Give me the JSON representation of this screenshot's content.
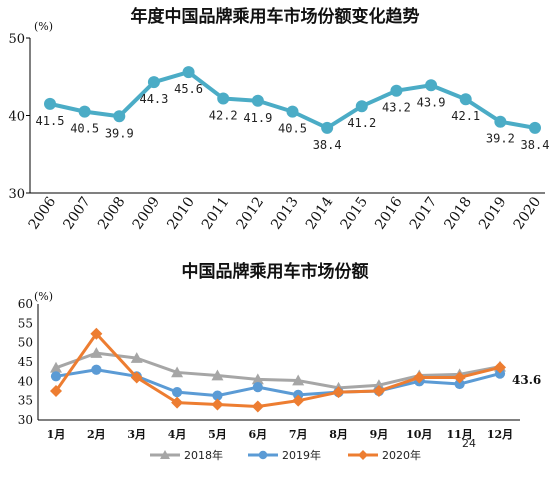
{
  "chart_data": [
    {
      "type": "line",
      "title": "年度中国品牌乘用车市场份额变化趋势",
      "unit_label": "(%)",
      "ylim": [
        30,
        50
      ],
      "yticks": [
        "30",
        "40",
        "50"
      ],
      "grid": false,
      "categories": [
        "2006",
        "2007",
        "2008",
        "2009",
        "2010",
        "2011",
        "2012",
        "2013",
        "2014",
        "2015",
        "2016",
        "2017",
        "2018",
        "2019",
        "2020"
      ],
      "series": [
        {
          "color": "#4bacc6",
          "values": [
            41.5,
            40.5,
            39.9,
            44.3,
            45.6,
            42.2,
            41.9,
            40.5,
            38.4,
            41.2,
            43.2,
            43.9,
            42.1,
            39.2,
            38.4
          ],
          "labels": [
            "41.5",
            "40.5",
            "39.9",
            "44.3",
            "45.6",
            "42.2",
            "41.9",
            "40.5",
            "38.4",
            "41.2",
            "43.2",
            "43.9",
            "42.1",
            "39.2",
            "38.4"
          ]
        }
      ]
    },
    {
      "type": "line",
      "title": "中国品牌乘用车市场份额",
      "unit_label": "(%)",
      "ylim": [
        30,
        60
      ],
      "yticks": [
        "30",
        "35",
        "40",
        "45",
        "50",
        "55",
        "60"
      ],
      "grid": false,
      "legend_position": "bottom",
      "categories": [
        "1月",
        "2月",
        "3月",
        "4月",
        "5月",
        "6月",
        "7月",
        "8月",
        "9月",
        "10月",
        "11月",
        "12月"
      ],
      "series": [
        {
          "name": "2018年",
          "color": "#a6a6a6",
          "marker": "triangle",
          "values": [
            43.5,
            47.3,
            46.0,
            42.3,
            41.5,
            40.5,
            40.2,
            38.3,
            39.0,
            41.5,
            41.8,
            43.8
          ]
        },
        {
          "name": "2019年",
          "color": "#5b9bd5",
          "marker": "circle",
          "values": [
            41.3,
            43.0,
            41.3,
            37.2,
            36.3,
            38.5,
            36.5,
            37.2,
            37.5,
            40.0,
            39.3,
            42.0
          ]
        },
        {
          "name": "2020年",
          "color": "#ed7d31",
          "marker": "diamond",
          "values": [
            37.5,
            52.3,
            41.0,
            34.5,
            34.0,
            33.5,
            35.0,
            37.2,
            37.5,
            41.0,
            41.0,
            43.6
          ]
        }
      ],
      "annotation": "43.6"
    }
  ],
  "page_number": "24"
}
